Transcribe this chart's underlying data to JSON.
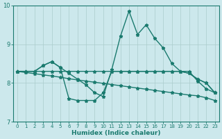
{
  "xlabel": "Humidex (Indice chaleur)",
  "xlim": [
    -0.5,
    23.5
  ],
  "ylim": [
    7,
    10
  ],
  "yticks": [
    7,
    8,
    9,
    10
  ],
  "xticks": [
    0,
    1,
    2,
    3,
    4,
    5,
    6,
    7,
    8,
    9,
    10,
    11,
    12,
    13,
    14,
    15,
    16,
    17,
    18,
    19,
    20,
    21,
    22,
    23
  ],
  "bg_color": "#cce8ec",
  "grid_color": "#aacccc",
  "line_color": "#1a7a6e",
  "series": [
    {
      "x": [
        0,
        1,
        2,
        3,
        4,
        5,
        6,
        7,
        8,
        9,
        10,
        11,
        12,
        13,
        14,
        15,
        16,
        17,
        18,
        19,
        20,
        21,
        22,
        23
      ],
      "y": [
        8.3,
        8.3,
        8.3,
        8.3,
        8.3,
        8.3,
        8.3,
        8.3,
        8.3,
        8.3,
        8.3,
        8.3,
        8.3,
        8.3,
        8.3,
        8.3,
        8.3,
        8.3,
        8.3,
        8.3,
        8.25,
        8.1,
        8.0,
        7.75
      ]
    },
    {
      "x": [
        0,
        1,
        2,
        3,
        4,
        5,
        6,
        7,
        8,
        9,
        10,
        11,
        12,
        13,
        14,
        15,
        16,
        17,
        18,
        19,
        20,
        21,
        22,
        23
      ],
      "y": [
        8.3,
        8.3,
        8.3,
        8.45,
        8.55,
        8.4,
        8.25,
        8.1,
        7.95,
        7.75,
        7.65,
        8.35,
        9.2,
        9.85,
        9.25,
        9.5,
        9.15,
        8.9,
        8.5,
        8.3,
        8.3,
        8.05,
        7.85,
        7.75
      ]
    },
    {
      "x": [
        0,
        1,
        2,
        3,
        4,
        5,
        6,
        7,
        8,
        9,
        10,
        11,
        12,
        13,
        14,
        15,
        16,
        17,
        18,
        19,
        20,
        21,
        22,
        23
      ],
      "y": [
        8.3,
        8.3,
        8.3,
        8.45,
        8.55,
        8.4,
        7.6,
        7.55,
        7.55,
        7.55,
        7.75,
        8.3,
        8.3,
        8.3,
        8.3,
        8.3,
        8.3,
        8.3,
        8.3,
        8.3,
        8.25,
        8.1,
        8.0,
        7.75
      ]
    },
    {
      "x": [
        0,
        1,
        2,
        3,
        4,
        5,
        6,
        7,
        8,
        9,
        10,
        11,
        12,
        13,
        14,
        15,
        16,
        17,
        18,
        19,
        20,
        21,
        22,
        23
      ],
      "y": [
        8.3,
        8.27,
        8.24,
        8.21,
        8.18,
        8.15,
        8.11,
        8.08,
        8.05,
        8.02,
        7.99,
        7.96,
        7.93,
        7.9,
        7.87,
        7.84,
        7.81,
        7.78,
        7.75,
        7.72,
        7.69,
        7.67,
        7.62,
        7.55
      ]
    }
  ]
}
